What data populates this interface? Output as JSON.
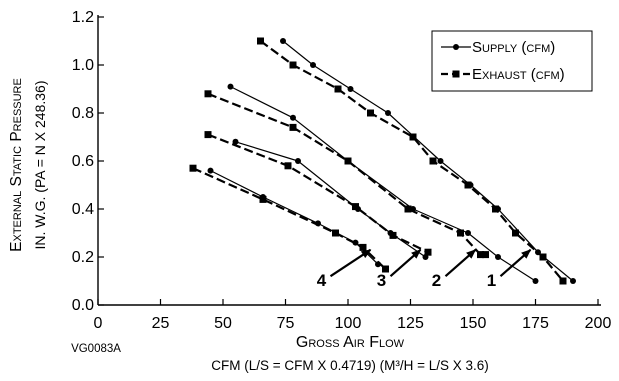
{
  "chart_data": {
    "type": "line",
    "x_ticks": [
      "0",
      "25",
      "50",
      "75",
      "100",
      "125",
      "150",
      "175",
      "200"
    ],
    "y_ticks": [
      "0.0",
      "0.2",
      "0.4",
      "0.6",
      "0.8",
      "1.0",
      "1.2"
    ],
    "xlim": [
      0,
      200
    ],
    "ylim": [
      0,
      1.2
    ],
    "grid": false,
    "legend_position": "top-right",
    "xlabel": "Gross Air Flow",
    "xlabel2": "CFM (L/S = CFM X 0.4719) (M³/H = L/S X 3.6)",
    "ylabel": "External Static Pressure",
    "ylabel2": "IN. W.G. (PA = N X 248.36)",
    "figure_id": "VG0083A",
    "colors": {
      "line": "#000000",
      "background": "#ffffff"
    },
    "legend": [
      {
        "label": "Supply (cfm)",
        "marker": "circle",
        "style": "solid"
      },
      {
        "label": "Exhaust (cfm)",
        "marker": "square",
        "style": "dashed"
      }
    ],
    "series": [
      {
        "curve": "1",
        "kind": "supply",
        "x": [
          74,
          86,
          101,
          116,
          137,
          149,
          160,
          176,
          190
        ],
        "y": [
          1.1,
          1.0,
          0.9,
          0.8,
          0.6,
          0.5,
          0.4,
          0.22,
          0.1
        ]
      },
      {
        "curve": "1",
        "kind": "exhaust",
        "x": [
          65,
          78,
          96,
          109,
          126,
          134,
          148,
          159,
          167,
          178,
          186
        ],
        "y": [
          1.1,
          1.0,
          0.9,
          0.8,
          0.7,
          0.6,
          0.5,
          0.4,
          0.3,
          0.2,
          0.1
        ]
      },
      {
        "curve": "2",
        "kind": "supply",
        "x": [
          53,
          78,
          100,
          126,
          148,
          160,
          175
        ],
        "y": [
          0.91,
          0.78,
          0.6,
          0.4,
          0.3,
          0.2,
          0.1
        ]
      },
      {
        "curve": "2",
        "kind": "exhaust",
        "x": [
          44,
          78,
          100,
          124,
          145,
          153,
          155
        ],
        "y": [
          0.88,
          0.74,
          0.6,
          0.4,
          0.3,
          0.21,
          0.21
        ]
      },
      {
        "curve": "3",
        "kind": "supply",
        "x": [
          55,
          80,
          104,
          117,
          131
        ],
        "y": [
          0.68,
          0.6,
          0.4,
          0.3,
          0.2
        ]
      },
      {
        "curve": "3",
        "kind": "exhaust",
        "x": [
          44,
          76,
          103,
          118,
          132
        ],
        "y": [
          0.71,
          0.58,
          0.41,
          0.29,
          0.22
        ]
      },
      {
        "curve": "4",
        "kind": "supply",
        "x": [
          45,
          66,
          88,
          103,
          112
        ],
        "y": [
          0.56,
          0.45,
          0.34,
          0.26,
          0.17
        ]
      },
      {
        "curve": "4",
        "kind": "exhaust",
        "x": [
          38,
          66,
          95,
          106,
          115
        ],
        "y": [
          0.57,
          0.44,
          0.3,
          0.24,
          0.15
        ]
      }
    ],
    "annotations": [
      {
        "text": "1",
        "arrow_to": [
          173,
          0.23
        ],
        "from": [
          161,
          0.12
        ]
      },
      {
        "text": "2",
        "arrow_to": [
          151,
          0.23
        ],
        "from": [
          139,
          0.12
        ]
      },
      {
        "text": "3",
        "arrow_to": [
          129,
          0.23
        ],
        "from": [
          117,
          0.12
        ]
      },
      {
        "text": "4",
        "arrow_to": [
          109,
          0.23
        ],
        "from": [
          93,
          0.12
        ]
      }
    ]
  }
}
